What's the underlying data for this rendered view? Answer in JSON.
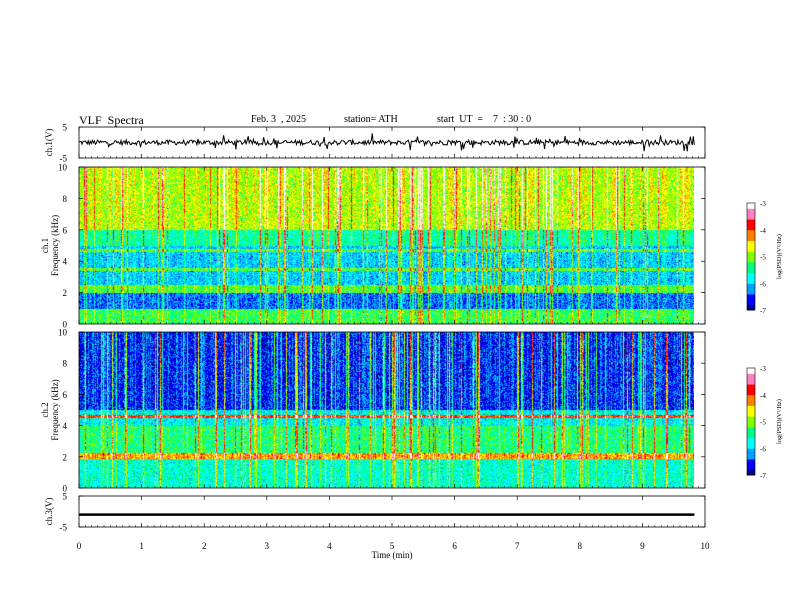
{
  "header": {
    "title": "VLF  Spectra",
    "date": "Feb. 3  , 2025",
    "station": "station= ATH",
    "start_ut": "start  UT  =    7  : 30 : 0"
  },
  "chart_data": {
    "type": "heatmap",
    "xlabel": "Time  (min)",
    "xlim": [
      0,
      10
    ],
    "xticks": [
      "0",
      "1",
      "2",
      "3",
      "4",
      "5",
      "6",
      "7",
      "8",
      "9",
      "10"
    ],
    "panels": [
      {
        "name": "ch.1(V)",
        "type": "line",
        "ylim": [
          -5,
          5
        ],
        "yticks": [
          "5",
          "-5"
        ],
        "level": 0
      },
      {
        "name": "ch.1",
        "ylabel": "Frequency  (kHz)",
        "type": "spectrogram",
        "ylim": [
          0,
          10
        ],
        "yticks": [
          "10",
          "8",
          "6",
          "4",
          "2",
          "0"
        ]
      },
      {
        "name": "ch.2",
        "ylabel": "Frequency  (kHz)",
        "type": "spectrogram",
        "ylim": [
          0,
          10
        ],
        "yticks": [
          "10",
          "8",
          "6",
          "4",
          "2",
          "0"
        ]
      },
      {
        "name": "ch.3(V)",
        "type": "line",
        "ylim": [
          -5,
          5
        ],
        "yticks": [
          "5",
          "-5"
        ],
        "level": -1
      }
    ],
    "colorbar": {
      "label": "log(PSD)(V²/Hz)",
      "range": [
        -7,
        -3
      ],
      "ticks": [
        "-3",
        "-4",
        "-5",
        "-6",
        "-7"
      ]
    },
    "data_end_min": 9.83
  },
  "colors": {
    "scale": [
      "#000080",
      "#0000ff",
      "#00a0ff",
      "#00ffff",
      "#00ff80",
      "#80ff00",
      "#ffff00",
      "#ff8000",
      "#ff0000",
      "#ff80c0",
      "#ffffff"
    ]
  }
}
